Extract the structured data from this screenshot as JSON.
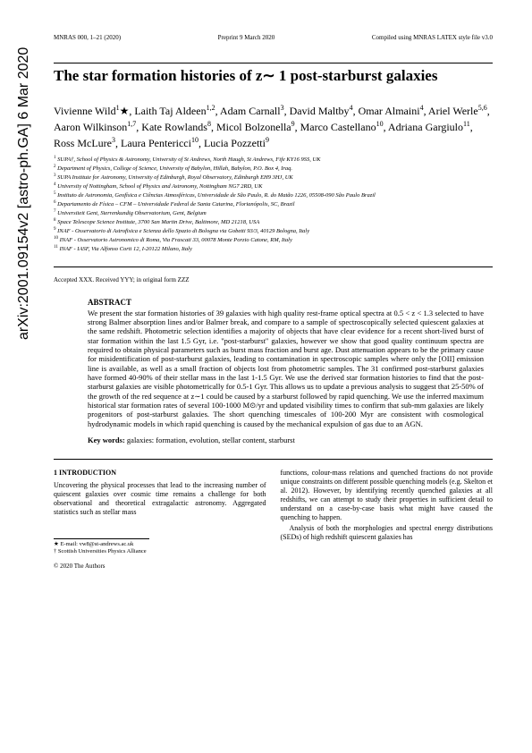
{
  "arxiv": "arXiv:2001.09154v2  [astro-ph.GA]  6 Mar 2020",
  "header": {
    "left": "MNRAS 000, 1–21 (2020)",
    "center": "Preprint 9 March 2020",
    "right": "Compiled using MNRAS LATEX style file v3.0"
  },
  "title": "The star formation histories of z∼ 1 post-starburst galaxies",
  "authors_html": "Vivienne Wild<sup>1</sup>★, Laith Taj Aldeen<sup>1,2</sup>, Adam Carnall<sup>3</sup>, David Maltby<sup>4</sup>, Omar Almaini<sup>4</sup>, Ariel Werle<sup>5,6</sup>, Aaron Wilkinson<sup>1,7</sup>, Kate Rowlands<sup>8</sup>, Micol Bolzonella<sup>9</sup>, Marco Castellano<sup>10</sup>, Adriana Gargiulo<sup>11</sup>, Ross McLure<sup>3</sup>, Laura Pentericci<sup>10</sup>, Lucia Pozzetti<sup>9</sup>",
  "affiliations": [
    "SUPA†, School of Physics & Astronomy, University of St Andrews, North Haugh, St Andrews, Fife KY16 9SS, UK",
    "Department of Physics, College of Science, University of Babylon, Hillah, Babylon, P.O. Box 4, Iraq.",
    "SUPA Institute for Astronomy, University of Edinburgh, Royal Observatory, Edinburgh EH9 3HJ, UK",
    "University of Nottingham, School of Physics and Astronomy, Nottingham NG7 2RD, UK",
    "Instituto de Astronomia, Geofísica e Ciências Atmosféricas, Universidade de São Paulo, R. do Matão 1226, 05508-090 São Paulo Brazil",
    "Departamento de Física – CFM – Universidade Federal de Santa Catarina, Florianópolis, SC, Brazil",
    "Universiteit Gent, Sterrenkundig Observatorium, Gent, Belgium",
    "Space Telescope Science Institute, 3700 San Martin Drive, Baltimore, MD 21218, USA",
    "INAF - Osservatorio di Astrofisica e Scienza dello Spazio di Bologna via Gobetti 93/3, 40129 Bologna, Italy",
    "INAF - Osservatorio Astronomico di Roma, Via Frascati 33, 00078 Monte Porzio Catone, RM, Italy",
    "INAF - IASF, Via Alfonso Corti 12, I-20122 Milano, Italy"
  ],
  "accepted": "Accepted XXX. Received YYY; in original form ZZZ",
  "abstract_heading": "ABSTRACT",
  "abstract": "We present the star formation histories of 39 galaxies with high quality rest-frame optical spectra at 0.5 < z < 1.3 selected to have strong Balmer absorption lines and/or Balmer break, and compare to a sample of spectroscopically selected quiescent galaxies at the same redshift. Photometric selection identifies a majority of objects that have clear evidence for a recent short-lived burst of star formation within the last 1.5 Gyr, i.e. \"post-starburst\" galaxies, however we show that good quality continuum spectra are required to obtain physical parameters such as burst mass fraction and burst age. Dust attenuation appears to be the primary cause for misidentification of post-starburst galaxies, leading to contamination in spectroscopic samples where only the [OII] emission line is available, as well as a small fraction of objects lost from photometric samples. The 31 confirmed post-starburst galaxies have formed 40-90% of their stellar mass in the last 1-1.5 Gyr. We use the derived star formation histories to find that the post-starburst galaxies are visible photometrically for 0.5-1 Gyr. This allows us to update a previous analysis to suggest that 25-50% of the growth of the red sequence at z∼1 could be caused by a starburst followed by rapid quenching. We use the inferred maximum historical star formation rates of several 100-1000 M⊙/yr and updated visibility times to confirm that sub-mm galaxies are likely progenitors of post-starburst galaxies. The short quenching timescales of 100-200 Myr are consistent with cosmological hydrodynamic models in which rapid quenching is caused by the mechanical expulsion of gas due to an AGN.",
  "keywords_label": "Key words:",
  "keywords": "galaxies: formation, evolution, stellar content, starburst",
  "section1_heading": "1   INTRODUCTION",
  "col1_text": "Uncovering the physical processes that lead to the increasing number of quiescent galaxies over cosmic time remains a challenge for both observational and theoretical extragalactic astronomy. Aggregated statistics such as stellar mass",
  "col2_text": "functions, colour-mass relations and quenched fractions do not provide unique constraints on different possible quenching models (e.g. Skelton et al. 2012). However, by identifying recently quenched galaxies at all redshifts, we can attempt to study their properties in sufficient detail to understand on a case-by-case basis what might have caused the quenching to happen.",
  "col2_text2": "Analysis of both the morphologies and spectral energy distributions (SEDs) of high redshift quiescent galaxies has",
  "footnote1": "★ E-mail: vw8@st-andrews.ac.uk",
  "footnote2": "† Scottish Universities Physics Alliance",
  "copyright": "© 2020 The Authors"
}
